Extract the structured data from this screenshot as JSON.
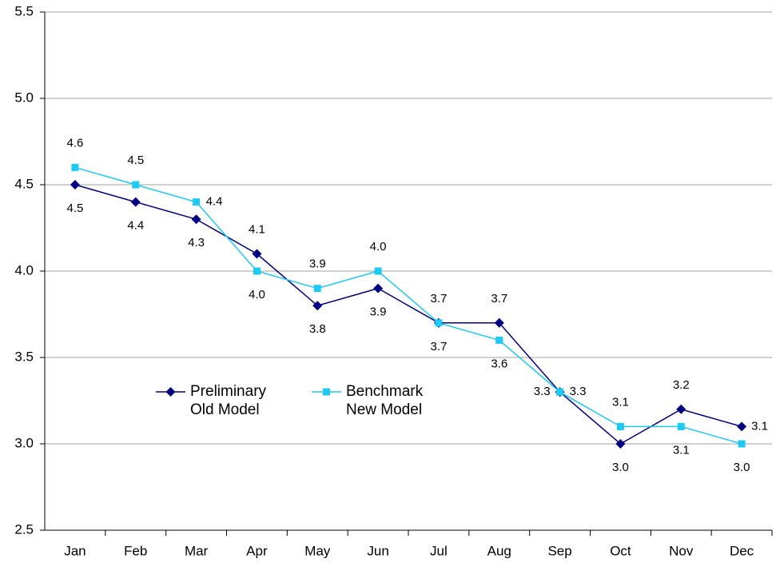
{
  "chart_data": {
    "type": "line",
    "categories": [
      "Jan",
      "Feb",
      "Mar",
      "Apr",
      "May",
      "Jun",
      "Jul",
      "Aug",
      "Sep",
      "Oct",
      "Nov",
      "Dec"
    ],
    "series": [
      {
        "name": "Preliminary Old Model",
        "color": "#000080",
        "marker": "diamond",
        "values": [
          4.5,
          4.4,
          4.3,
          4.1,
          3.8,
          3.9,
          3.7,
          3.7,
          3.3,
          3.0,
          3.2,
          3.1
        ],
        "value_labels": [
          "4.5",
          "4.4",
          "4.3",
          "4.1",
          "3.8",
          "3.9",
          "3.7",
          "3.7",
          "3.3",
          "3.0",
          "3.2",
          "3.1"
        ]
      },
      {
        "name": "Benchmark New Model",
        "color": "#1ccaf4",
        "marker": "square",
        "values": [
          4.6,
          4.5,
          4.4,
          4.0,
          3.9,
          4.0,
          3.7,
          3.6,
          3.3,
          3.1,
          3.1,
          3.0
        ],
        "value_labels": [
          "4.6",
          "4.5",
          "4.4",
          "4.0",
          "3.9",
          "4.0",
          "3.7",
          "3.6",
          "3.3",
          "3.1",
          "3.1",
          "3.0"
        ]
      }
    ],
    "ylim": [
      2.5,
      5.5
    ],
    "yticks": [
      2.5,
      {
        "value": 3,
        "label": "3.0"
      },
      3.5,
      {
        "value": 4,
        "label": "4.0"
      },
      4.5,
      {
        "value": 5,
        "label": "5.0"
      },
      5.5
    ],
    "grid": true
  }
}
